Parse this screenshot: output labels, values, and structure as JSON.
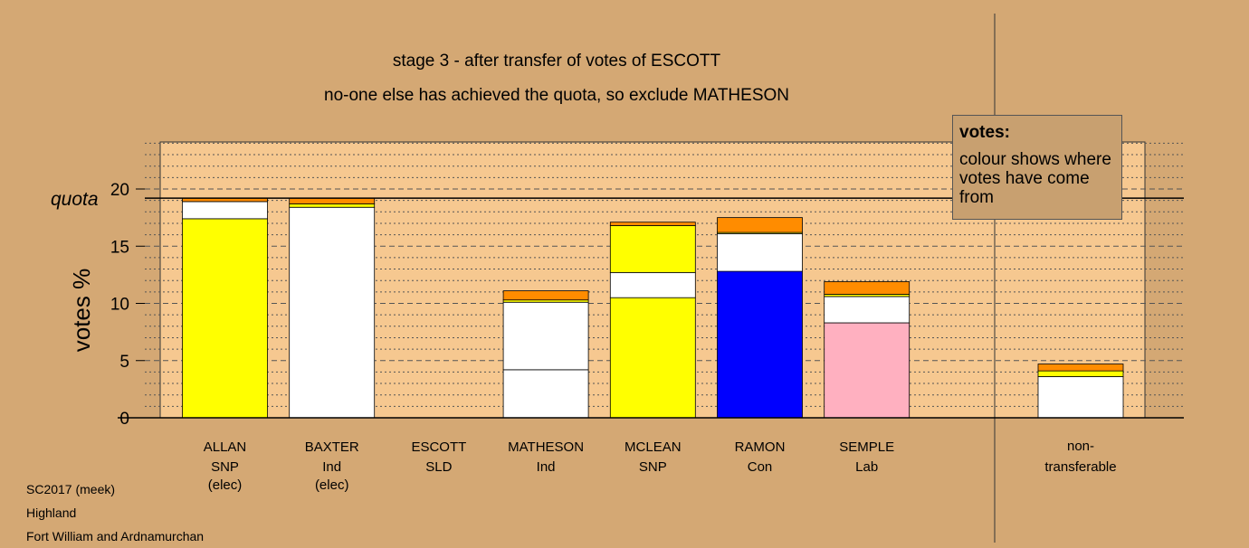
{
  "titles": {
    "line1": "stage 3 - after transfer of votes of ESCOTT",
    "line2": "no-one else has achieved the quota, so exclude MATHESON"
  },
  "legend": {
    "title": "votes:",
    "body": "colour shows where votes have come from"
  },
  "footer": {
    "line1": "SC2017 (meek)",
    "line2": "Highland",
    "line3": "Fort William and Ardnamurchan"
  },
  "colors": {
    "background": "#d4a874",
    "plot_area": "#f6c890",
    "SNP": "#ffff00",
    "Ind": "#ffffff",
    "Con": "#0000ff",
    "Lab": "#ffb0c0",
    "SLD": "#ff8c00",
    "quota_line": "#000000"
  },
  "chart_data": {
    "type": "bar",
    "stacked": true,
    "ylabel": "votes %",
    "quota_label": "quota",
    "quota": 19.2,
    "ylim": [
      0,
      24
    ],
    "yticks": [
      0,
      5,
      10,
      15,
      20
    ],
    "grid": "dotted minor lines every 1%, dashed at 5% steps",
    "categories": [
      {
        "name": "ALLAN",
        "party": "SNP",
        "status": "(elec)",
        "segments": [
          {
            "party": "SNP",
            "value": 17.4
          },
          {
            "party": "Ind",
            "value": 1.5
          },
          {
            "party": "SLD",
            "value": 0.3
          }
        ]
      },
      {
        "name": "BAXTER",
        "party": "Ind",
        "status": "(elec)",
        "segments": [
          {
            "party": "Ind",
            "value": 18.4
          },
          {
            "party": "SNP",
            "value": 0.3
          },
          {
            "party": "SLD",
            "value": 0.5
          }
        ]
      },
      {
        "name": "ESCOTT",
        "party": "SLD",
        "status": "",
        "segments": []
      },
      {
        "name": "MATHESON",
        "party": "Ind",
        "status": "",
        "segments": [
          {
            "party": "Ind",
            "value": 4.2
          },
          {
            "party": "Ind",
            "value": 5.9
          },
          {
            "party": "SNP",
            "value": 0.2
          },
          {
            "party": "SLD",
            "value": 0.8
          }
        ]
      },
      {
        "name": "MCLEAN",
        "party": "SNP",
        "status": "",
        "segments": [
          {
            "party": "SNP",
            "value": 10.5
          },
          {
            "party": "Ind",
            "value": 2.2
          },
          {
            "party": "SNP",
            "value": 4.1
          },
          {
            "party": "SLD",
            "value": 0.3
          }
        ]
      },
      {
        "name": "RAMON",
        "party": "Con",
        "status": "",
        "segments": [
          {
            "party": "Con",
            "value": 12.8
          },
          {
            "party": "Ind",
            "value": 3.3
          },
          {
            "party": "SNP",
            "value": 0.1
          },
          {
            "party": "SLD",
            "value": 1.3
          }
        ]
      },
      {
        "name": "SEMPLE",
        "party": "Lab",
        "status": "",
        "segments": [
          {
            "party": "Lab",
            "value": 8.3
          },
          {
            "party": "Ind",
            "value": 2.3
          },
          {
            "party": "SNP",
            "value": 0.2
          },
          {
            "party": "SLD",
            "value": 1.1
          }
        ]
      }
    ],
    "nontransferable": {
      "label_line1": "non-",
      "label_line2": "transferable",
      "segments": [
        {
          "party": "Ind",
          "value": 3.6
        },
        {
          "party": "SNP",
          "value": 0.5
        },
        {
          "party": "SLD",
          "value": 0.6
        }
      ]
    }
  }
}
